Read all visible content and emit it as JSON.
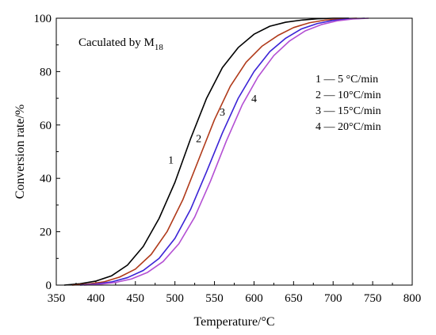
{
  "chart_data": {
    "type": "line",
    "xlabel": "Temperature/°C",
    "ylabel": "Conversion rate/%",
    "xlim": [
      350,
      800
    ],
    "ylim": [
      0,
      100
    ],
    "x_ticks": [
      "350",
      "400",
      "450",
      "500",
      "550",
      "600",
      "650",
      "700",
      "750",
      "800"
    ],
    "y_ticks": [
      "0",
      "20",
      "40",
      "60",
      "80",
      "100"
    ],
    "annotation": {
      "text": "Caculated by M",
      "subscript": "18"
    },
    "legend": {
      "position": "top-right",
      "entries": [
        "1 —  5 °C/min",
        "2 — 10°C/min",
        "3 — 15°C/min",
        "4 — 20°C/min"
      ]
    },
    "series": [
      {
        "label": "1",
        "color": "#000000",
        "label_at": [
          495,
          47
        ],
        "x": [
          360,
          380,
          400,
          420,
          440,
          460,
          480,
          500,
          520,
          540,
          560,
          580,
          600,
          620,
          640,
          660,
          680,
          700,
          720
        ],
        "y": [
          0,
          0.5,
          1.5,
          3.5,
          7.5,
          14.5,
          25,
          38.5,
          55,
          70,
          81.5,
          89,
          94,
          97,
          98.5,
          99.3,
          99.8,
          100,
          100
        ]
      },
      {
        "label": "2",
        "color": "#b03a1a",
        "label_at": [
          530,
          55
        ],
        "x": [
          370,
          390,
          410,
          430,
          450,
          470,
          490,
          510,
          530,
          550,
          570,
          590,
          610,
          630,
          650,
          670,
          690,
          710,
          730
        ],
        "y": [
          0,
          0.4,
          1.2,
          3,
          6,
          11.5,
          20,
          32,
          47,
          62,
          74.5,
          83.5,
          89.5,
          93.5,
          96.5,
          98.3,
          99.3,
          99.8,
          100
        ]
      },
      {
        "label": "3",
        "color": "#3a23d6",
        "label_at": [
          560,
          65
        ],
        "x": [
          380,
          400,
          420,
          440,
          460,
          480,
          500,
          520,
          540,
          560,
          580,
          600,
          620,
          640,
          660,
          680,
          700,
          720,
          740
        ],
        "y": [
          0,
          0.4,
          1.2,
          2.8,
          5.5,
          10,
          17.5,
          28.5,
          42.5,
          57,
          70,
          80,
          87.5,
          92.5,
          96,
          98,
          99.2,
          99.7,
          100
        ]
      },
      {
        "label": "4",
        "color": "#b34fd3",
        "label_at": [
          600,
          70
        ],
        "x": [
          385,
          405,
          425,
          445,
          465,
          485,
          505,
          525,
          545,
          565,
          585,
          605,
          625,
          645,
          665,
          685,
          705,
          725,
          745
        ],
        "y": [
          0,
          0.3,
          1,
          2.3,
          4.7,
          8.8,
          15.5,
          25.5,
          39,
          54,
          67.5,
          78,
          86,
          91.5,
          95.3,
          97.6,
          99,
          99.7,
          100
        ]
      }
    ]
  }
}
